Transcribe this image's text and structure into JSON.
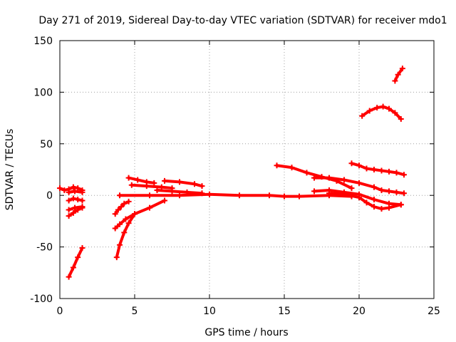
{
  "chart_data": {
    "type": "scatter",
    "title": "Day 271 of 2019, Sidereal Day-to-day VTEC variation (SDTVAR) for receiver mdo1",
    "xlabel": "GPS time / hours",
    "ylabel": "SDTVAR / TECUs",
    "xlim": [
      0,
      25
    ],
    "ylim": [
      -100,
      150
    ],
    "xticks": [
      0,
      5,
      10,
      15,
      20,
      25
    ],
    "yticks": [
      -100,
      -50,
      0,
      50,
      100,
      150
    ],
    "xtick_labels": [
      "0",
      "5",
      "10",
      "15",
      "20",
      "25"
    ],
    "ytick_labels": [
      "-100",
      "-50",
      "0",
      "50",
      "100",
      "150"
    ],
    "grid": true,
    "marker": "+",
    "color": "#ff0000",
    "series": [
      {
        "name": "arc-01",
        "x": [
          0.0,
          0.3,
          0.6,
          0.9,
          1.2,
          1.5
        ],
        "y": [
          7,
          5,
          6,
          8,
          7,
          5
        ]
      },
      {
        "name": "arc-02",
        "x": [
          0.6,
          1.0,
          1.5
        ],
        "y": [
          3,
          4,
          3
        ]
      },
      {
        "name": "arc-03",
        "x": [
          0.6,
          0.9,
          1.2,
          1.5
        ],
        "y": [
          -5,
          -3,
          -4,
          -5
        ]
      },
      {
        "name": "arc-04",
        "x": [
          0.6,
          1.0,
          1.5
        ],
        "y": [
          -14,
          -12,
          -11
        ]
      },
      {
        "name": "arc-05",
        "x": [
          0.6,
          0.9,
          1.2,
          1.5
        ],
        "y": [
          -20,
          -17,
          -14,
          -12
        ]
      },
      {
        "name": "arc-06",
        "x": [
          0.6,
          0.9,
          1.2,
          1.5
        ],
        "y": [
          -79,
          -70,
          -60,
          -51
        ]
      },
      {
        "name": "arc-07",
        "x": [
          3.7,
          3.9,
          4.1,
          4.3,
          4.6
        ],
        "y": [
          -18,
          -14,
          -11,
          -8,
          -6
        ]
      },
      {
        "name": "arc-08",
        "x": [
          3.7,
          4.0,
          4.4,
          5.0,
          6.0,
          7.0
        ],
        "y": [
          -32,
          -28,
          -23,
          -18,
          -12,
          -5
        ]
      },
      {
        "name": "arc-09",
        "x": [
          3.8,
          4.0,
          4.3,
          4.6,
          5.0
        ],
        "y": [
          -60,
          -48,
          -36,
          -27,
          -18
        ]
      },
      {
        "name": "arc-10",
        "x": [
          4.0,
          6.0,
          8.0,
          10.0,
          12.0,
          14.0,
          15.0,
          16.0,
          18.0,
          19.5
        ],
        "y": [
          0,
          0,
          0,
          1,
          0,
          0,
          -1,
          -1,
          0,
          -1
        ]
      },
      {
        "name": "arc-11",
        "x": [
          4.6,
          5.2,
          5.8,
          6.3
        ],
        "y": [
          17,
          15,
          13,
          12
        ]
      },
      {
        "name": "arc-12",
        "x": [
          4.8,
          5.8,
          6.8,
          7.5
        ],
        "y": [
          10,
          9,
          8,
          7
        ]
      },
      {
        "name": "arc-13",
        "x": [
          6.5,
          7.5,
          8.5,
          9.5
        ],
        "y": [
          5,
          4,
          3,
          2
        ]
      },
      {
        "name": "arc-14",
        "x": [
          7.0,
          8.0,
          9.0,
          9.5
        ],
        "y": [
          14,
          13,
          11,
          9
        ]
      },
      {
        "name": "arc-15",
        "x": [
          14.5,
          15.5,
          16.5,
          17.5,
          18.5,
          19.5
        ],
        "y": [
          29,
          27,
          22,
          18,
          14,
          7
        ]
      },
      {
        "name": "arc-16",
        "x": [
          17.0,
          18.0,
          19.0,
          20.0,
          21.0,
          21.5,
          22.0,
          22.5,
          23.0
        ],
        "y": [
          17,
          17,
          15,
          12,
          8,
          5,
          4,
          3,
          2
        ]
      },
      {
        "name": "arc-17",
        "x": [
          17.0,
          18.0,
          19.0,
          20.0,
          21.0,
          22.0,
          22.8
        ],
        "y": [
          4,
          5,
          3,
          1,
          -4,
          -8,
          -9
        ]
      },
      {
        "name": "arc-18",
        "x": [
          18.0,
          19.0,
          20.0,
          20.5,
          21.0,
          21.5,
          22.0,
          22.8
        ],
        "y": [
          2,
          1,
          -2,
          -7,
          -11,
          -13,
          -12,
          -9
        ]
      },
      {
        "name": "arc-19",
        "x": [
          19.5,
          20.0,
          20.5,
          21.0,
          21.5,
          22.0,
          22.5,
          23.0
        ],
        "y": [
          31,
          29,
          26,
          25,
          24,
          23,
          22,
          20
        ]
      },
      {
        "name": "arc-20",
        "x": [
          20.2,
          20.7,
          21.2,
          21.6,
          22.0,
          22.4,
          22.8
        ],
        "y": [
          77,
          82,
          85,
          86,
          84,
          80,
          74
        ]
      },
      {
        "name": "arc-21",
        "x": [
          22.4,
          22.6,
          22.9
        ],
        "y": [
          111,
          117,
          123
        ]
      }
    ]
  }
}
